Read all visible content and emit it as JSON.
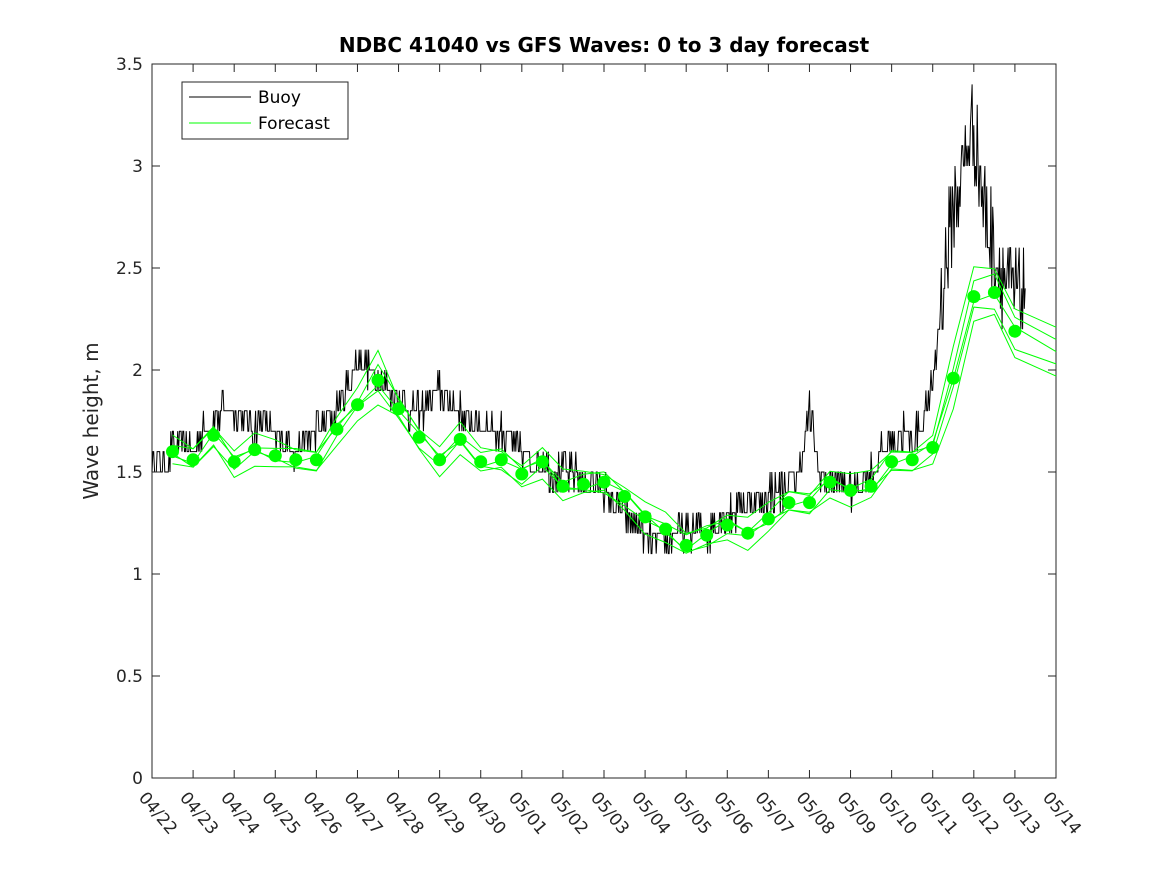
{
  "chart_data": {
    "type": "line",
    "title": "NDBC 41040 vs GFS Waves: 0 to 3 day forecast",
    "xlabel": "",
    "ylabel": "Wave height, m",
    "xlim": [
      "04/22",
      "05/14"
    ],
    "ylim": [
      0,
      3.5
    ],
    "y_ticks": [
      "0",
      "0.5",
      "1",
      "1.5",
      "2",
      "2.5",
      "3",
      "3.5"
    ],
    "x_tick_labels": [
      "04/22",
      "04/23",
      "04/24",
      "04/25",
      "04/26",
      "04/27",
      "04/28",
      "04/29",
      "04/30",
      "05/01",
      "05/02",
      "05/03",
      "05/04",
      "05/05",
      "05/06",
      "05/07",
      "05/08",
      "05/09",
      "05/10",
      "05/11",
      "05/12",
      "05/13",
      "05/14"
    ],
    "grid": false,
    "legend": {
      "position": "top-left",
      "entries": [
        "Buoy",
        "Forecast"
      ]
    },
    "colors": {
      "buoy": "#000000",
      "forecast": "#00ff00",
      "axes": "#262626"
    },
    "series": [
      {
        "name": "Buoy",
        "x_days": [
          0,
          0.25,
          0.5,
          0.75,
          1,
          1.25,
          1.5,
          1.75,
          2,
          2.25,
          2.5,
          2.75,
          3,
          3.25,
          3.5,
          3.75,
          4,
          4.25,
          4.5,
          4.75,
          5,
          5.25,
          5.5,
          5.75,
          6,
          6.25,
          6.5,
          6.75,
          7,
          7.25,
          7.5,
          7.75,
          8,
          8.25,
          8.5,
          8.75,
          9,
          9.25,
          9.5,
          9.75,
          10,
          10.25,
          10.5,
          10.75,
          11,
          11.25,
          11.5,
          11.75,
          12,
          12.25,
          12.5,
          12.75,
          13,
          13.25,
          13.5,
          13.75,
          14,
          14.25,
          14.5,
          14.75,
          15,
          15.25,
          15.5,
          15.75,
          16,
          16.25,
          16.5,
          16.75,
          17,
          17.25,
          17.5,
          17.75,
          18,
          18.25,
          18.5,
          18.75,
          19,
          19.25,
          19.5,
          19.75,
          20,
          20.25,
          20.5,
          20.75,
          21,
          21.25
        ],
        "values": [
          1.55,
          1.55,
          1.6,
          1.65,
          1.6,
          1.7,
          1.75,
          1.8,
          1.8,
          1.75,
          1.7,
          1.75,
          1.65,
          1.65,
          1.6,
          1.65,
          1.7,
          1.75,
          1.8,
          1.9,
          2.05,
          2.0,
          1.95,
          1.9,
          1.85,
          1.8,
          1.8,
          1.85,
          1.9,
          1.85,
          1.8,
          1.75,
          1.75,
          1.7,
          1.7,
          1.65,
          1.6,
          1.55,
          1.55,
          1.5,
          1.5,
          1.5,
          1.45,
          1.45,
          1.4,
          1.35,
          1.3,
          1.25,
          1.2,
          1.15,
          1.15,
          1.2,
          1.2,
          1.25,
          1.2,
          1.25,
          1.3,
          1.3,
          1.35,
          1.35,
          1.4,
          1.4,
          1.45,
          1.5,
          1.8,
          1.5,
          1.45,
          1.45,
          1.4,
          1.45,
          1.5,
          1.6,
          1.65,
          1.7,
          1.65,
          1.75,
          1.9,
          2.4,
          2.8,
          3.0,
          3.2,
          2.8,
          2.6,
          2.45,
          2.35,
          2.4
        ]
      },
      {
        "name": "Forecast",
        "x_days": [
          0.5,
          1,
          1.5,
          2,
          2.5,
          3,
          3.5,
          4,
          4.5,
          5,
          5.5,
          6,
          6.5,
          7,
          7.5,
          8,
          8.5,
          9,
          9.5,
          10,
          10.5,
          11,
          11.5,
          12,
          12.5,
          13,
          13.5,
          14,
          14.5,
          15,
          15.5,
          16,
          16.5,
          17,
          17.5,
          18,
          18.5,
          19,
          19.5,
          20,
          20.5,
          21
        ],
        "values": [
          1.6,
          1.56,
          1.68,
          1.55,
          1.61,
          1.58,
          1.56,
          1.56,
          1.71,
          1.83,
          1.95,
          1.81,
          1.67,
          1.56,
          1.66,
          1.55,
          1.56,
          1.49,
          1.55,
          1.43,
          1.44,
          1.45,
          1.38,
          1.28,
          1.22,
          1.14,
          1.19,
          1.24,
          1.2,
          1.27,
          1.35,
          1.35,
          1.45,
          1.41,
          1.43,
          1.55,
          1.56,
          1.62,
          1.96,
          2.36,
          2.38,
          2.19
        ]
      }
    ]
  }
}
